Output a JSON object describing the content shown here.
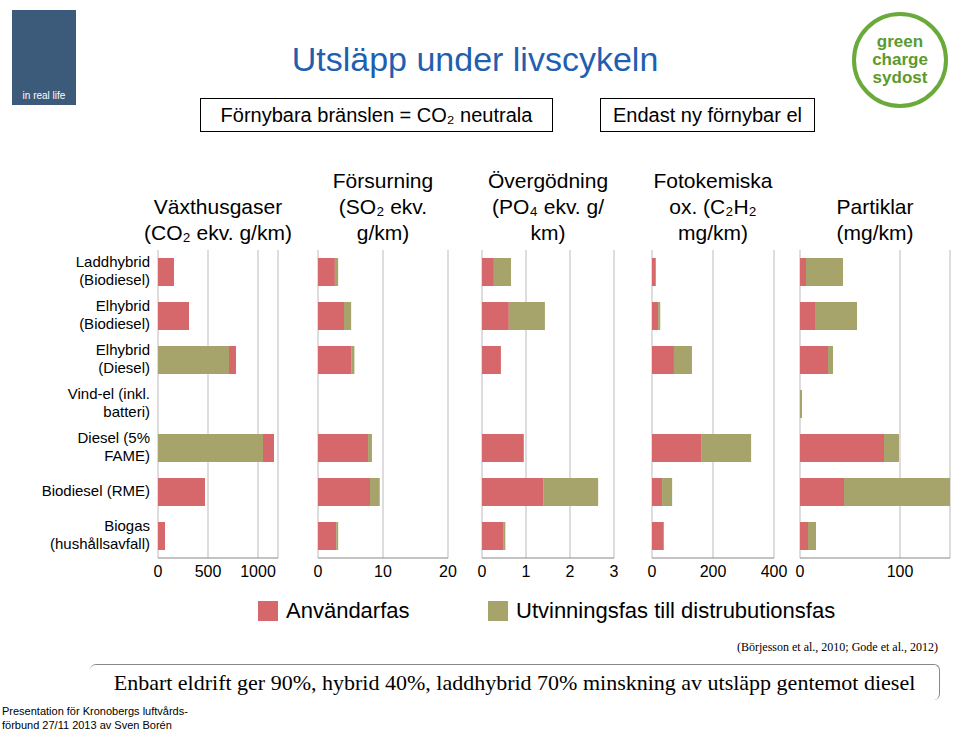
{
  "title": "Utsläpp under livscykeln",
  "boxes": [
    "Förnybara bränslen = CO₂ neutrala",
    "Endast ny förnybar el"
  ],
  "logos": {
    "left": "in real life",
    "right": [
      "green",
      "charge",
      "sydost"
    ]
  },
  "chart_data": [
    {
      "type": "bar",
      "orientation": "horizontal",
      "stacked": true,
      "grid": true,
      "title": "Växthusgaser\n(CO₂ ekv. g/km)",
      "categories": [
        "Laddhybrid\n(Biodiesel)",
        "Elhybrid\n(Biodiesel)",
        "Elhybrid\n(Diesel)",
        "Vind-el (inkl.\nbatteri)",
        "Diesel (5%\nFAME)",
        "Biodiesel (RME)",
        "Biogas\n(hushållsavfall)"
      ],
      "series": [
        {
          "name": "Utvinningsfas till distrubutionsfas",
          "color": "#a6a36b",
          "values": [
            0,
            0,
            710,
            0,
            1050,
            0,
            0
          ]
        },
        {
          "name": "Användarfas",
          "color": "#d6686c",
          "values": [
            160,
            310,
            70,
            0,
            110,
            470,
            70
          ]
        }
      ],
      "xlim": [
        0,
        1200
      ],
      "xticks": [
        0,
        500,
        1000
      ]
    },
    {
      "type": "bar",
      "orientation": "horizontal",
      "stacked": true,
      "grid": true,
      "tick_labels": "x",
      "title": "Försurning\n(SO₂ ekv.\ng/km)",
      "categories": [
        "Laddhybrid\n(Biodiesel)",
        "Elhybrid\n(Biodiesel)",
        "Elhybrid\n(Diesel)",
        "Vind-el (inkl.\nbatteri)",
        "Diesel (5%\nFAME)",
        "Biodiesel (RME)",
        "Biogas\n(hushållsavfall)"
      ],
      "series": [
        {
          "name": "Användarfas",
          "color": "#d6686c",
          "values": [
            2.6,
            4.0,
            5.1,
            0,
            7.7,
            8.0,
            2.8
          ]
        },
        {
          "name": "Utvinningsfas till distrubutionsfas",
          "color": "#a6a36b",
          "values": [
            0.5,
            1.1,
            0.5,
            0,
            0.6,
            1.5,
            0.3
          ]
        }
      ],
      "xlim": [
        0,
        20
      ],
      "xticks": [
        0,
        10,
        20
      ]
    },
    {
      "type": "bar",
      "orientation": "horizontal",
      "stacked": true,
      "grid": true,
      "tick_labels": "x",
      "title": "Övergödning\n(PO₄ ekv. g/\nkm)",
      "categories": [
        "Laddhybrid\n(Biodiesel)",
        "Elhybrid\n(Biodiesel)",
        "Elhybrid\n(Diesel)",
        "Vind-el (inkl.\nbatteri)",
        "Diesel (5%\nFAME)",
        "Biodiesel (RME)",
        "Biogas\n(hushållsavfall)"
      ],
      "series": [
        {
          "name": "Användarfas",
          "color": "#d6686c",
          "values": [
            0.27,
            0.61,
            0.43,
            0,
            0.95,
            1.39,
            0.48
          ]
        },
        {
          "name": "Utvinningsfas till distrubutionsfas",
          "color": "#a6a36b",
          "values": [
            0.39,
            0.82,
            0,
            0,
            0,
            1.25,
            0.05
          ]
        }
      ],
      "xlim": [
        0,
        3
      ],
      "xticks": [
        0,
        1,
        2,
        3
      ]
    },
    {
      "type": "bar",
      "orientation": "horizontal",
      "stacked": true,
      "grid": true,
      "tick_labels": "x",
      "title": "Fotokemiska\nox. (C₂H₂\nmg/km)",
      "categories": [
        "Laddhybrid\n(Biodiesel)",
        "Elhybrid\n(Biodiesel)",
        "Elhybrid\n(Diesel)",
        "Vind-el (inkl.\nbatteri)",
        "Diesel (5%\nFAME)",
        "Biodiesel (RME)",
        "Biogas\n(hushållsavfall)"
      ],
      "series": [
        {
          "name": "Användarfas",
          "color": "#d6686c",
          "values": [
            10,
            20,
            72,
            0,
            161,
            33,
            36
          ]
        },
        {
          "name": "Utvinningsfas till distrubutionsfas",
          "color": "#a6a36b",
          "values": [
            3,
            7,
            59,
            0,
            164,
            33,
            3
          ]
        }
      ],
      "xlim": [
        0,
        400
      ],
      "xticks": [
        0,
        200,
        400
      ]
    },
    {
      "type": "bar",
      "orientation": "horizontal",
      "stacked": true,
      "grid": true,
      "tick_labels": "x",
      "title": "Partiklar\n(mg/km)",
      "categories": [
        "Laddhybrid\n(Biodiesel)",
        "Elhybrid\n(Biodiesel)",
        "Elhybrid\n(Diesel)",
        "Vind-el (inkl.\nbatteri)",
        "Diesel (5%\nFAME)",
        "Biodiesel (RME)",
        "Biogas\n(hushållsavfall)"
      ],
      "series": [
        {
          "name": "Användarfas",
          "color": "#d6686c",
          "values": [
            6,
            15,
            28,
            0,
            84,
            44,
            8
          ]
        },
        {
          "name": "Utvinningsfas till distrubutionsfas",
          "color": "#a6a36b",
          "values": [
            37,
            42,
            5,
            2,
            15,
            106,
            8
          ]
        }
      ],
      "xlim": [
        0,
        150
      ],
      "xticks": [
        0,
        100
      ]
    }
  ],
  "source": "(Börjesson et al., 2010; Gode et al., 2012)",
  "footer": "Enbart eldrift ger 90%, hybrid 40%, laddhybrid 70% minskning av utsläpp gentemot diesel",
  "note": "Presentation för Kronobergs luftvårds-\nförbund 27/11 2013 av Sven Borén"
}
